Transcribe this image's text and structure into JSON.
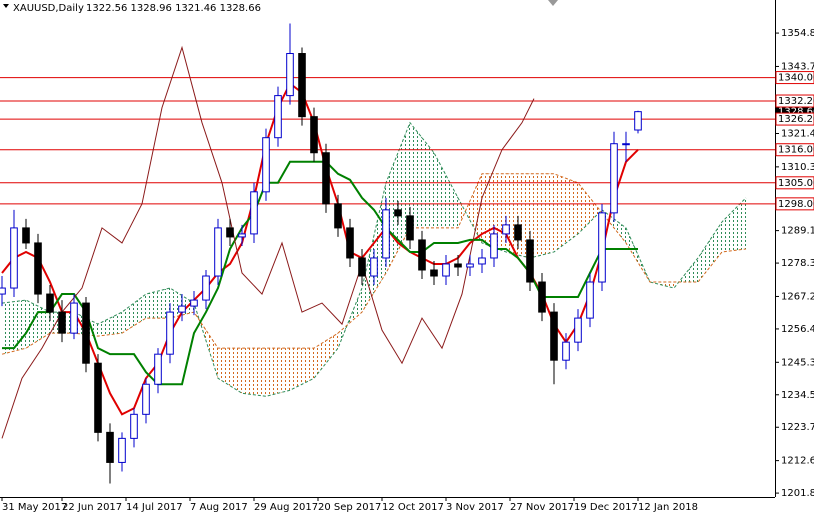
{
  "chart_data": {
    "type": "candlestick",
    "title": "XAUUSD,Daily",
    "ohlc_text": "1322.56 1328.96 1321.46 1328.66",
    "xlim": [
      -0.5,
      193.25
    ],
    "ylim": [
      1200.5,
      1365.8
    ],
    "yticks": [
      {
        "value": 1354.8,
        "label": "1354.80"
      },
      {
        "value": 1343.7,
        "label": "1343.70"
      },
      {
        "value": 1321.4,
        "label": "1321.40"
      },
      {
        "value": 1310.3,
        "label": "1310.30"
      },
      {
        "value": 1289.1,
        "label": "1289.10"
      },
      {
        "value": 1278.3,
        "label": "1278.30"
      },
      {
        "value": 1267.2,
        "label": "1267.20"
      },
      {
        "value": 1256.4,
        "label": "1256.40"
      },
      {
        "value": 1245.3,
        "label": "1245.30"
      },
      {
        "value": 1234.5,
        "label": "1234.50"
      },
      {
        "value": 1223.7,
        "label": "1223.70"
      },
      {
        "value": 1212.6,
        "label": "1212.60"
      },
      {
        "value": 1201.8,
        "label": "1201.80"
      }
    ],
    "xticks": [
      {
        "value": 0,
        "label": "31 May 2017"
      },
      {
        "value": 15,
        "label": "22 Jun 2017"
      },
      {
        "value": 31,
        "label": "14 Jul 2017"
      },
      {
        "value": 47,
        "label": "7 Aug 2017"
      },
      {
        "value": 63,
        "label": "29 Aug 2017"
      },
      {
        "value": 79,
        "label": "20 Sep 2017"
      },
      {
        "value": 95,
        "label": "12 Oct 2017"
      },
      {
        "value": 111,
        "label": "3 Nov 2017"
      },
      {
        "value": 127,
        "label": "27 Nov 2017"
      },
      {
        "value": 143,
        "label": "19 Dec 2017"
      },
      {
        "value": 159,
        "label": "12 Jan 2018"
      }
    ],
    "levels": [
      {
        "value": 1340,
        "label": "1340.00"
      },
      {
        "value": 1332.2,
        "label": "1332.20"
      },
      {
        "value": 1326.2,
        "label": "1326.20"
      },
      {
        "value": 1316,
        "label": "1316.00"
      },
      {
        "value": 1305,
        "label": "1305.00"
      },
      {
        "value": 1298,
        "label": "1298.00"
      }
    ],
    "level_color": "#e00000",
    "current_price": {
      "value": 1328.66,
      "label": "1328.66"
    },
    "up_color": "#0000cd",
    "down_color": "#000000",
    "x": [
      0,
      3,
      6,
      9,
      12,
      15,
      18,
      21,
      24,
      27,
      30,
      33,
      36,
      39,
      42,
      45,
      48,
      51,
      54,
      57,
      60,
      63,
      66,
      69,
      72,
      75,
      78,
      81,
      84,
      87,
      90,
      93,
      96,
      99,
      102,
      105,
      108,
      111,
      114,
      117,
      120,
      123,
      126,
      129,
      132,
      135,
      138,
      141,
      144,
      147,
      150,
      153,
      156,
      159
    ],
    "open": [
      1268,
      1270,
      1290,
      1285,
      1268,
      1262,
      1255,
      1265,
      1245,
      1222,
      1212,
      1220,
      1228,
      1238,
      1248,
      1262,
      1264,
      1266,
      1274,
      1290,
      1287,
      1288,
      1302,
      1320,
      1334,
      1348,
      1327,
      1315,
      1298,
      1290,
      1280,
      1274,
      1280,
      1296,
      1294,
      1286,
      1276,
      1274,
      1278,
      1277,
      1278,
      1280,
      1288,
      1291,
      1286,
      1272,
      1262,
      1246,
      1252,
      1260,
      1272,
      1295,
      1318,
      1322.56
    ],
    "high": [
      1274,
      1296,
      1293,
      1288,
      1271,
      1266,
      1268,
      1267,
      1248,
      1225,
      1222,
      1230,
      1240,
      1250,
      1265,
      1268,
      1269,
      1276,
      1293,
      1293,
      1291,
      1305,
      1323,
      1337,
      1358,
      1350,
      1330,
      1318,
      1301,
      1293,
      1283,
      1283,
      1300,
      1299,
      1297,
      1289,
      1279,
      1281,
      1281,
      1281,
      1283,
      1291,
      1294,
      1294,
      1289,
      1275,
      1265,
      1255,
      1263,
      1275,
      1298,
      1322,
      1322,
      1328.96
    ],
    "low": [
      1264,
      1267,
      1283,
      1265,
      1259,
      1252,
      1253,
      1242,
      1219,
      1205,
      1209,
      1217,
      1225,
      1235,
      1245,
      1259,
      1261,
      1263,
      1271,
      1284,
      1284,
      1285,
      1299,
      1317,
      1331,
      1324,
      1312,
      1295,
      1287,
      1277,
      1271,
      1271,
      1277,
      1291,
      1283,
      1273,
      1271,
      1271,
      1274,
      1274,
      1275,
      1277,
      1285,
      1283,
      1269,
      1259,
      1238,
      1243,
      1249,
      1257,
      1269,
      1292,
      1312,
      1321.46
    ],
    "close": [
      1270,
      1290,
      1285,
      1268,
      1262,
      1255,
      1265,
      1245,
      1222,
      1212,
      1220,
      1228,
      1238,
      1248,
      1262,
      1264,
      1266,
      1274,
      1290,
      1287,
      1288,
      1302,
      1320,
      1334,
      1348,
      1327,
      1315,
      1298,
      1290,
      1280,
      1274,
      1280,
      1296,
      1294,
      1286,
      1276,
      1274,
      1278,
      1277,
      1278,
      1280,
      1288,
      1291,
      1286,
      1272,
      1262,
      1246,
      1252,
      1260,
      1272,
      1295,
      1318,
      1318,
      1328.66
    ],
    "lines": [
      {
        "color": "#e00000",
        "x": [
          0,
          3,
          6,
          9,
          12,
          15,
          18,
          21,
          24,
          27,
          30,
          33,
          36,
          39,
          42,
          45,
          48,
          51,
          54,
          57,
          60,
          63,
          66,
          69,
          72,
          75,
          78,
          81,
          84,
          87,
          90,
          93,
          96,
          99,
          102,
          105,
          108,
          111,
          114,
          117,
          120,
          123,
          126,
          129,
          132,
          135,
          138,
          141,
          144,
          147,
          150,
          153,
          156,
          159
        ],
        "values": [
          1275,
          1280,
          1282,
          1280,
          1272,
          1262,
          1262,
          1255,
          1245,
          1235,
          1228,
          1230,
          1240,
          1245,
          1255,
          1262,
          1266,
          1270,
          1275,
          1278,
          1285,
          1300,
          1318,
          1330,
          1338,
          1335,
          1325,
          1310,
          1298,
          1282,
          1280,
          1285,
          1290,
          1285,
          1282,
          1280,
          1278,
          1278,
          1280,
          1285,
          1288,
          1290,
          1288,
          1280,
          1275,
          1268,
          1258,
          1252,
          1258,
          1268,
          1282,
          1300,
          1312,
          1316
        ],
        "width": 2
      },
      {
        "color": "#008000",
        "x": [
          0,
          3,
          6,
          9,
          12,
          15,
          18,
          21,
          24,
          27,
          30,
          33,
          36,
          39,
          42,
          45,
          48,
          51,
          54,
          57,
          60,
          63,
          66,
          69,
          72,
          75,
          78,
          81,
          84,
          87,
          90,
          93,
          96,
          99,
          102,
          105,
          108,
          111,
          114,
          117,
          120,
          123,
          126,
          129,
          132,
          135,
          138,
          141,
          144,
          147,
          150,
          153,
          156,
          159
        ],
        "values": [
          1250,
          1250,
          1255,
          1262,
          1262,
          1268,
          1268,
          1262,
          1250,
          1248,
          1248,
          1248,
          1242,
          1238,
          1238,
          1238,
          1255,
          1262,
          1270,
          1283,
          1290,
          1295,
          1305,
          1305,
          1312,
          1312,
          1312,
          1312,
          1308,
          1306,
          1300,
          1296,
          1290,
          1286,
          1282,
          1282,
          1285,
          1285,
          1285,
          1286,
          1286,
          1283,
          1283,
          1280,
          1275,
          1267,
          1267,
          1267,
          1267,
          1275,
          1283,
          1283,
          1283,
          1283
        ],
        "width": 2
      },
      {
        "color": "#8b1a1a",
        "x": [
          0,
          5,
          10,
          15,
          20,
          25,
          30,
          35,
          40,
          45,
          50,
          55,
          60,
          65,
          70,
          75,
          80,
          85,
          90,
          95,
          100,
          105,
          110,
          115,
          120,
          125,
          130,
          133
        ],
        "values": [
          1220,
          1240,
          1250,
          1262,
          1270,
          1290,
          1285,
          1298,
          1330,
          1350,
          1325,
          1305,
          1275,
          1268,
          1285,
          1262,
          1265,
          1258,
          1278,
          1256,
          1245,
          1260,
          1250,
          1268,
          1300,
          1316,
          1325,
          1333
        ],
        "width": 1
      }
    ],
    "cloud": {
      "x": [
        0,
        6,
        12,
        18,
        24,
        30,
        36,
        42,
        48,
        54,
        60,
        66,
        72,
        78,
        84,
        90,
        96,
        102,
        108,
        114,
        120,
        126,
        132,
        138,
        144,
        150,
        156,
        162,
        168,
        174,
        180,
        186
      ],
      "span_a": [
        1265,
        1266,
        1262,
        1262,
        1258,
        1262,
        1268,
        1270,
        1265,
        1240,
        1235,
        1234,
        1236,
        1240,
        1250,
        1270,
        1305,
        1325,
        1315,
        1300,
        1285,
        1282,
        1280,
        1282,
        1288,
        1296,
        1290,
        1272,
        1270,
        1280,
        1292,
        1300
      ],
      "span_b": [
        1248,
        1250,
        1255,
        1255,
        1254,
        1255,
        1260,
        1260,
        1262,
        1250,
        1250,
        1250,
        1250,
        1250,
        1255,
        1262,
        1275,
        1290,
        1290,
        1290,
        1308,
        1308,
        1308,
        1308,
        1305,
        1295,
        1285,
        1272,
        1272,
        1272,
        1282,
        1283
      ],
      "up_color": "#2e8b57",
      "down_color": "#d2691e"
    }
  }
}
